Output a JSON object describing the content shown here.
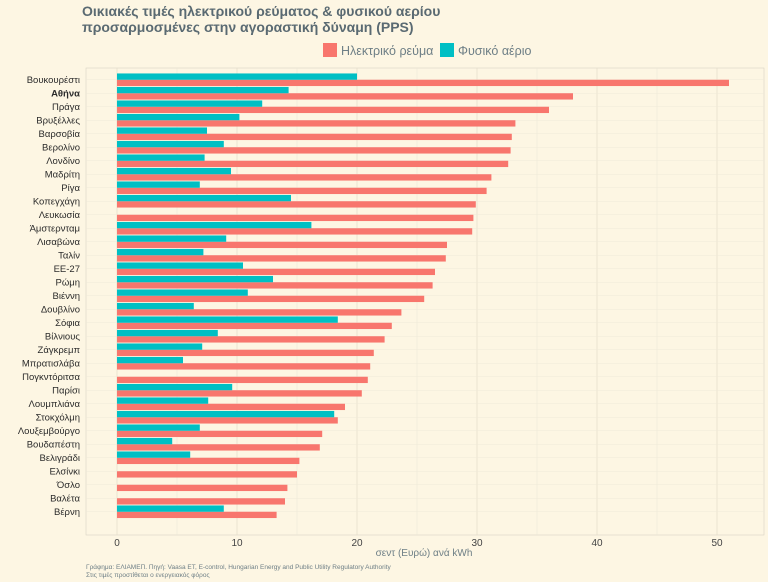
{
  "chart_data": {
    "type": "bar",
    "orientation": "horizontal",
    "title_line1": "Οικιακές τιμές ηλεκτρικού ρεύματος & φυσικού αερίου",
    "title_line2": "προσαρμοσμένες στην αγοραστική δύναμη (PPS)",
    "xlabel": "σεντ (Ευρώ) ανά kWh",
    "xlim": [
      0,
      52
    ],
    "xticks": [
      0,
      10,
      20,
      30,
      40,
      50
    ],
    "grid": true,
    "legend_position": "top",
    "highlight_category": "Αθήνα",
    "categories": [
      "Βουκουρέστι",
      "Αθήνα",
      "Πράγα",
      "Βρυξέλλες",
      "Βαρσοβία",
      "Βερολίνο",
      "Λονδίνο",
      "Μαδρίτη",
      "Ρίγα",
      "Κοπεγχάγη",
      "Λευκωσία",
      "Άμστερνταμ",
      "Λισαβώνα",
      "Ταλίν",
      "ΕΕ-27",
      "Ρώμη",
      "Βιέννη",
      "Δουβλίνο",
      "Σόφια",
      "Βίλνιους",
      "Ζάγκρεμπ",
      "Μπρατισλάβα",
      "Πογκντόριτσα",
      "Παρίσι",
      "Λουμπλιάνα",
      "Στοκχόλμη",
      "Λουξεμβούργο",
      "Βουδαπέστη",
      "Βελιγράδι",
      "Ελσίνκι",
      "Όσλο",
      "Βαλέτα",
      "Βέρνη"
    ],
    "series": [
      {
        "name": "Ηλεκτρικό ρεύμα",
        "color": "#f8766d",
        "values": [
          51.0,
          38.0,
          36.0,
          33.2,
          32.9,
          32.8,
          32.6,
          31.2,
          30.8,
          29.9,
          29.7,
          29.6,
          27.5,
          27.4,
          26.5,
          26.3,
          25.6,
          23.7,
          22.9,
          22.3,
          21.4,
          21.1,
          20.9,
          20.4,
          19.0,
          18.4,
          17.1,
          16.9,
          15.2,
          15.0,
          14.2,
          14.0,
          13.3
        ]
      },
      {
        "name": "Φυσικό αέριο",
        "color": "#00bfc4",
        "values": [
          20.0,
          14.3,
          12.1,
          10.2,
          7.5,
          8.9,
          7.3,
          9.5,
          6.9,
          14.5,
          null,
          16.2,
          9.1,
          7.2,
          10.5,
          13.0,
          10.9,
          6.4,
          18.4,
          8.4,
          7.1,
          5.5,
          null,
          9.6,
          7.6,
          18.1,
          6.9,
          4.6,
          6.1,
          null,
          null,
          null,
          8.9
        ]
      }
    ],
    "caption_line1": "Γράφημα: ΕΛΙΑΜΕΠ. Πηγή: Vaasa ET, E-control, Hungarian Energy and Public Utility Regulatory Authority",
    "caption_line2": "Στις τιμές προστίθεται ο ενεργειακός φόρος"
  }
}
